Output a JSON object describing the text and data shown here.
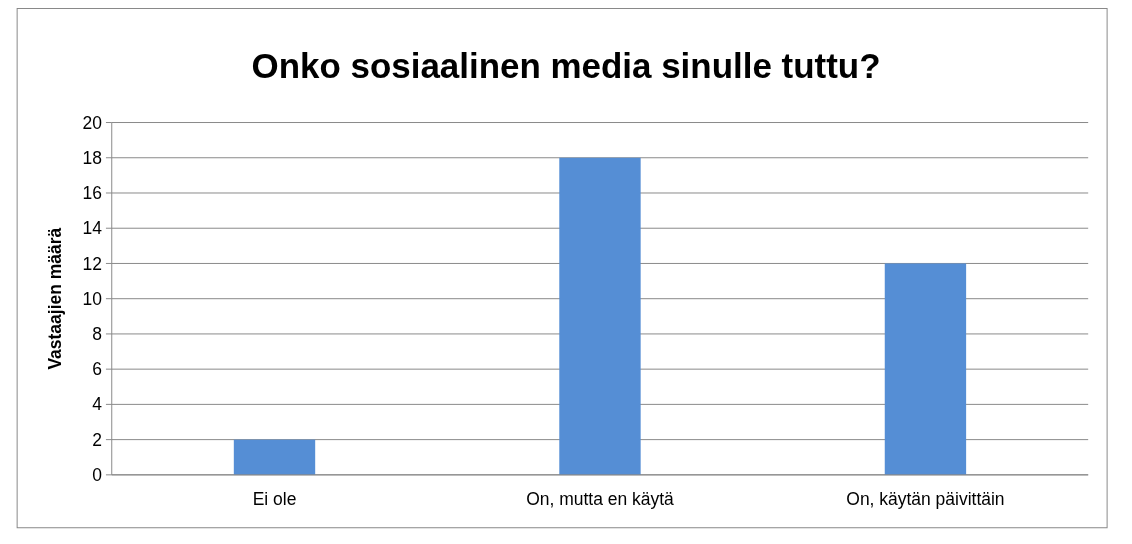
{
  "chart_data": {
    "type": "bar",
    "title": "Onko sosiaalinen media sinulle tuttu?",
    "ylabel": "Vastaajien määrä",
    "categories": [
      "Ei ole",
      "On, mutta en käytä",
      "On, käytän päivittäin"
    ],
    "values": [
      2,
      18,
      12
    ],
    "color": "#558ed5",
    "ylim": [
      0,
      20
    ],
    "yticks": [
      0,
      2,
      4,
      6,
      8,
      10,
      12,
      14,
      16,
      18,
      20
    ],
    "grid": "y"
  }
}
